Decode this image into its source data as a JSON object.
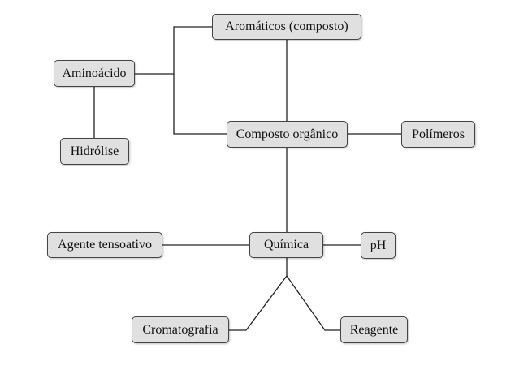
{
  "nodes": {
    "aromaticos": "Aromáticos (composto)",
    "aminoacido": "Aminoácido",
    "hidrolise": "Hidrólise",
    "composto_organico": "Composto orgânico",
    "polimeros": "Polímeros",
    "quimica": "Química",
    "agente_tensoativo": "Agente tensoativo",
    "ph": "pH",
    "cromatografia": "Cromatografia",
    "reagente": "Reagente"
  },
  "edges": [
    {
      "from": "aromaticos",
      "to": "composto_organico"
    },
    {
      "from": "aminoacido",
      "to": "aromaticos"
    },
    {
      "from": "aminoacido",
      "to": "composto_organico"
    },
    {
      "from": "aminoacido",
      "to": "hidrolise"
    },
    {
      "from": "composto_organico",
      "to": "polimeros"
    },
    {
      "from": "composto_organico",
      "to": "quimica"
    },
    {
      "from": "quimica",
      "to": "agente_tensoativo"
    },
    {
      "from": "quimica",
      "to": "ph"
    },
    {
      "from": "quimica",
      "to": "cromatografia"
    },
    {
      "from": "quimica",
      "to": "reagente"
    }
  ],
  "colors": {
    "node_fill": "#e0e0e0",
    "node_border": "#444444",
    "edge": "#222222"
  }
}
